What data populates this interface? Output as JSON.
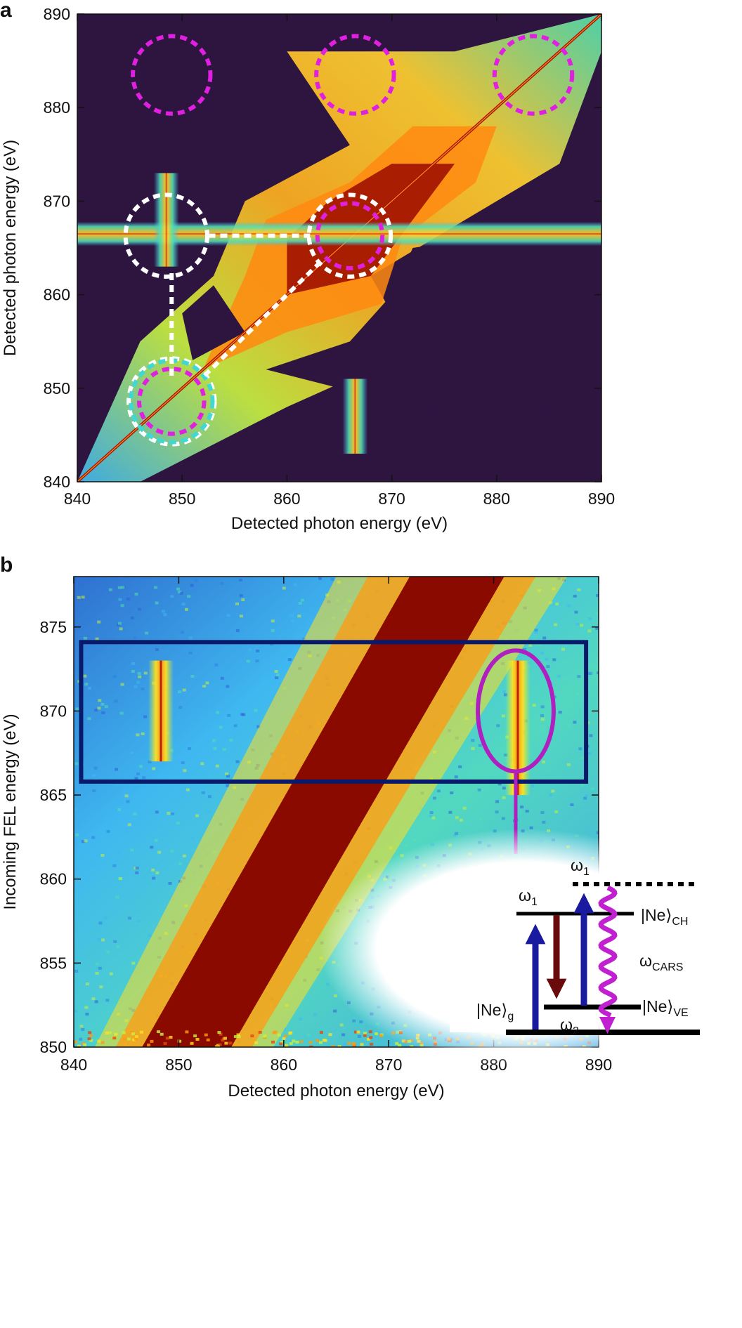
{
  "chart_data": [
    {
      "panel": "a",
      "type": "heatmap",
      "xlabel": "Detected photon energy (eV)",
      "ylabel": "Detected photon energy (eV)",
      "xlim": [
        840,
        890
      ],
      "ylim": [
        840,
        890
      ],
      "xticks": [
        840,
        850,
        860,
        870,
        880,
        890
      ],
      "yticks": [
        840,
        850,
        860,
        870,
        880,
        890
      ],
      "colormap": [
        "#2e1540",
        "#2f5fd8",
        "#3fb8f0",
        "#52e0b0",
        "#c8f040",
        "#ffe020",
        "#ff9a10",
        "#e04a10",
        "#8a0a00"
      ],
      "background_color": "#2e1540",
      "features": [
        {
          "kind": "diagonal",
          "from": [
            840,
            840
          ],
          "to": [
            890,
            890
          ]
        },
        {
          "kind": "horizontal-band",
          "y": 866.5,
          "x_range": [
            840,
            890
          ]
        },
        {
          "kind": "vertical-band",
          "x": 866.5,
          "y_range": [
            843,
            851
          ]
        },
        {
          "kind": "vertical-band",
          "x": 848.5,
          "y_range": [
            863,
            873
          ]
        }
      ],
      "annotations": [
        {
          "kind": "circle",
          "color": "#e020e0",
          "center": [
            849,
            883.5
          ],
          "radius": 3.7
        },
        {
          "kind": "circle",
          "color": "#e020e0",
          "center": [
            866.5,
            883.5
          ],
          "radius": 3.7
        },
        {
          "kind": "circle",
          "color": "#e020e0",
          "center": [
            883.5,
            883.5
          ],
          "radius": 3.7
        },
        {
          "kind": "circle",
          "color": "#ffffff",
          "center": [
            848.5,
            866.3
          ],
          "radius": 3.9
        },
        {
          "kind": "circle",
          "color": "#ffffff",
          "center": [
            866,
            866.3
          ],
          "radius": 3.9
        },
        {
          "kind": "circle",
          "color": "#e020e0",
          "center": [
            866,
            866.3
          ],
          "radius": 3.1
        },
        {
          "kind": "circle",
          "color": "#ffffff",
          "center": [
            849,
            848.6
          ],
          "radius": 4.1
        },
        {
          "kind": "circle",
          "color": "#40d8d0",
          "center": [
            849,
            848.6
          ],
          "radius": 3.9
        },
        {
          "kind": "circle",
          "color": "#e020e0",
          "center": [
            849,
            848.6
          ],
          "radius": 3.1
        },
        {
          "kind": "dashed-line",
          "color": "#ffffff",
          "from": [
            852.5,
            866.3
          ],
          "to": [
            862.2,
            866.3
          ]
        },
        {
          "kind": "dashed-line",
          "color": "#ffffff",
          "from": [
            849,
            862.3
          ],
          "to": [
            849,
            851.2
          ]
        },
        {
          "kind": "dashed-line",
          "color": "#ffffff",
          "from": [
            863.2,
            863.5
          ],
          "to": [
            852,
            851.2
          ]
        }
      ]
    },
    {
      "panel": "b",
      "type": "heatmap",
      "xlabel": "Detected photon energy (eV)",
      "ylabel": "Incoming FEL energy (eV)",
      "xlim": [
        840,
        890
      ],
      "ylim": [
        850,
        878
      ],
      "xticks": [
        840,
        850,
        860,
        870,
        880,
        890
      ],
      "yticks": [
        850,
        855,
        860,
        865,
        870,
        875
      ],
      "colormap": [
        "#2e1540",
        "#2f5fd8",
        "#3fb8f0",
        "#52e0b0",
        "#c8f040",
        "#ffe020",
        "#ff9a10",
        "#e04a10",
        "#8a0a00"
      ],
      "background_color": "#3fa8e8",
      "features": [
        {
          "kind": "diagonal-band",
          "from": [
            850,
            850
          ],
          "to": [
            876,
            878
          ],
          "width": 10
        },
        {
          "kind": "vertical-band",
          "x": 848.3,
          "y_range": [
            867,
            873
          ]
        },
        {
          "kind": "vertical-band",
          "x": 882.3,
          "y_range": [
            865,
            873
          ]
        }
      ],
      "annotations": [
        {
          "kind": "rectangle",
          "color": "#0a1a6a",
          "x": [
            840.7,
            888.8
          ],
          "y": [
            865.8,
            874.1
          ]
        },
        {
          "kind": "ellipse",
          "color": "#b020c0",
          "center": [
            882.1,
            870
          ],
          "rx": 3.8,
          "ry": 3.6
        },
        {
          "kind": "line",
          "color": "#b020c0",
          "from": [
            882.1,
            866.4
          ],
          "to": [
            882.1,
            861.5
          ]
        }
      ],
      "inset": {
        "labels": {
          "omega1_left": "ω",
          "omega1_left_sub": "1",
          "omega1_top": "ω",
          "omega1_top_sub": "1",
          "omega2": "ω",
          "omega2_sub": "2",
          "omega_cars": "ω",
          "omega_cars_sub": "CARS",
          "state_g": "|Ne⟩",
          "state_g_sub": "g",
          "state_ch": "|Ne⟩",
          "state_ch_sub": "CH",
          "state_ve": "|Ne⟩",
          "state_ve_sub": "VE"
        },
        "colors": {
          "pump": "#1a1aa0",
          "stokes": "#6a0a0a",
          "cars": "#c020d0",
          "level": "#000000"
        }
      }
    }
  ],
  "panel_labels": {
    "a": "a",
    "b": "b"
  }
}
